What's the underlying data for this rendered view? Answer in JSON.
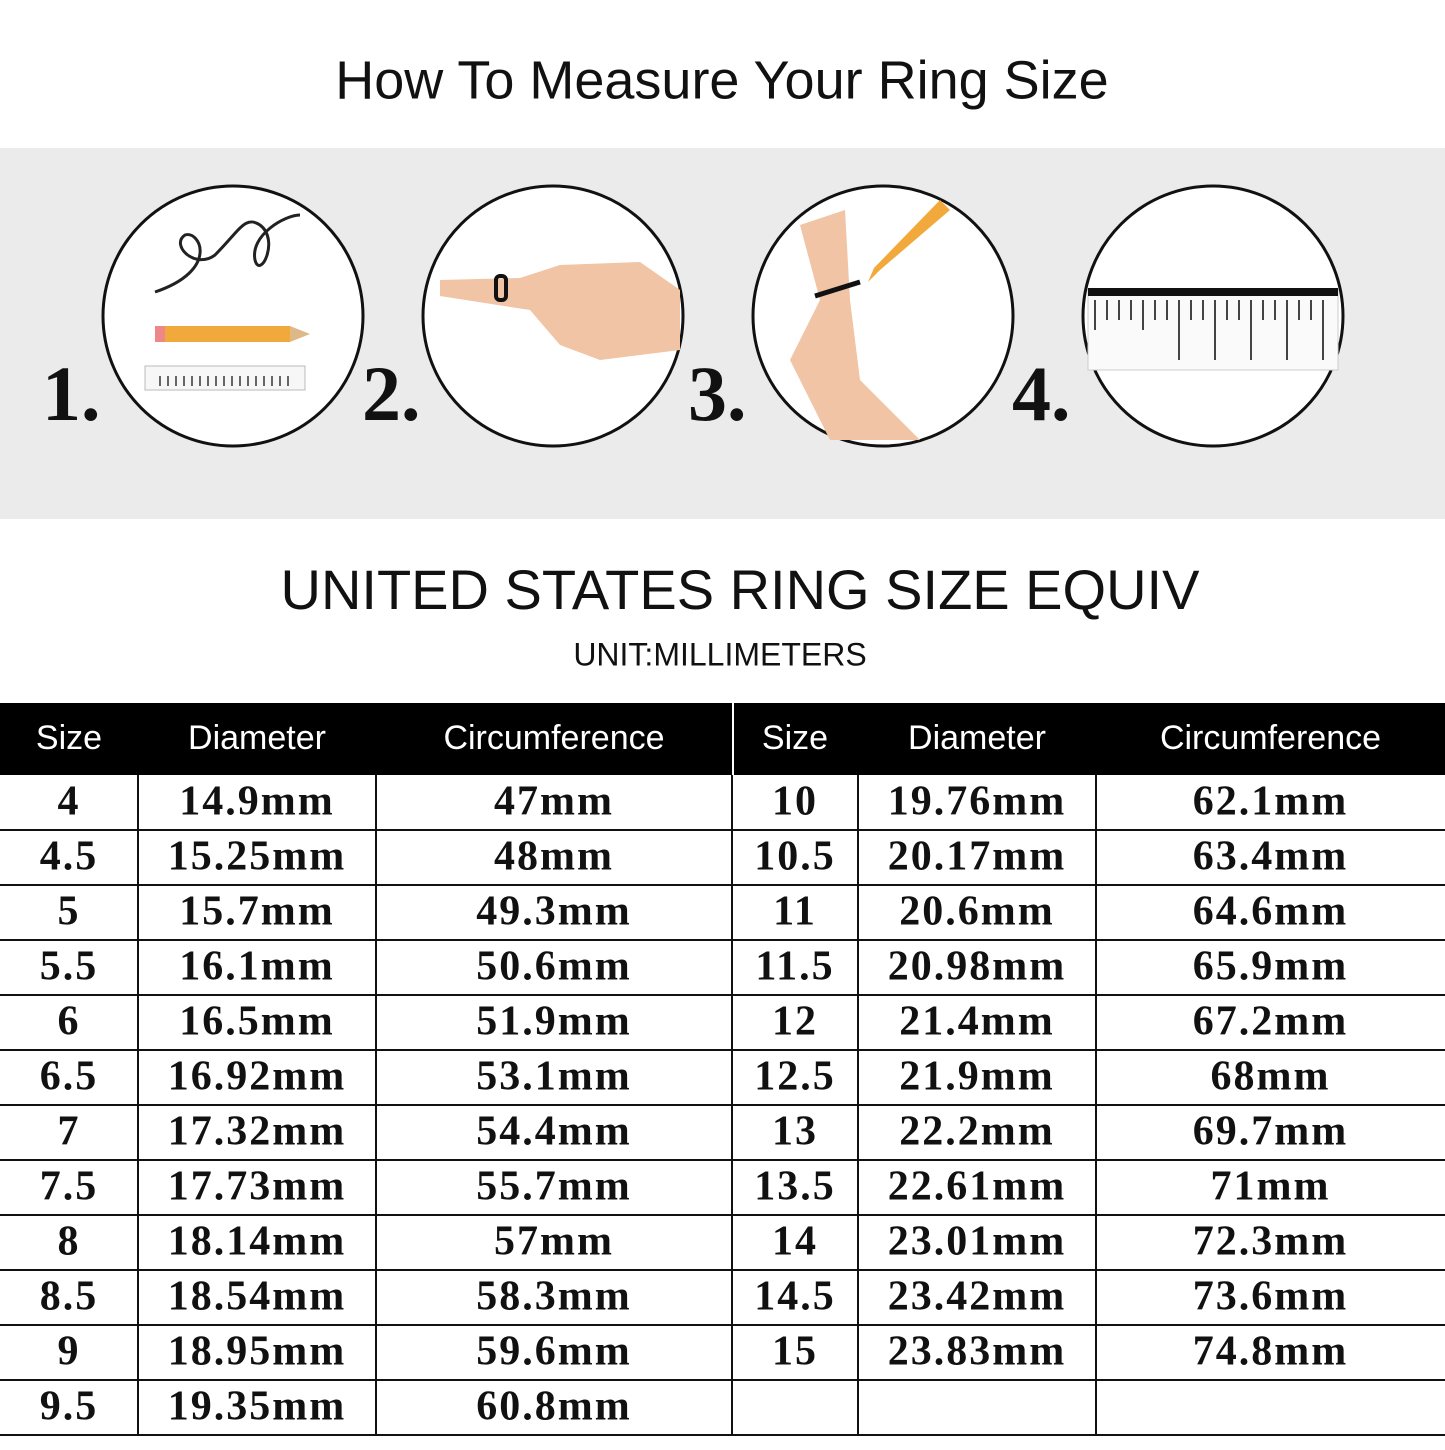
{
  "header": {
    "title": "How To Measure Your Ring Size"
  },
  "steps": [
    "1.",
    "2.",
    "3.",
    "4."
  ],
  "table": {
    "title": "UNITED STATES RING SIZE EQUIV",
    "unit": "UNIT:MILLIMETERS",
    "left": {
      "header": [
        "Size",
        "Diameter",
        "Circumference"
      ],
      "rows": [
        [
          "4",
          "14.9mm",
          "47mm"
        ],
        [
          "4.5",
          "15.25mm",
          "48mm"
        ],
        [
          "5",
          "15.7mm",
          "49.3mm"
        ],
        [
          "5.5",
          "16.1mm",
          "50.6mm"
        ],
        [
          "6",
          "16.5mm",
          "51.9mm"
        ],
        [
          "6.5",
          "16.92mm",
          "53.1mm"
        ],
        [
          "7",
          "17.32mm",
          "54.4mm"
        ],
        [
          "7.5",
          "17.73mm",
          "55.7mm"
        ],
        [
          "8",
          "18.14mm",
          "57mm"
        ],
        [
          "8.5",
          "18.54mm",
          "58.3mm"
        ],
        [
          "9",
          "18.95mm",
          "59.6mm"
        ],
        [
          "9.5",
          "19.35mm",
          "60.8mm"
        ]
      ]
    },
    "right": {
      "header": [
        "Size",
        "Diameter",
        "Circumference"
      ],
      "rows": [
        [
          "10",
          "19.76mm",
          "62.1mm"
        ],
        [
          "10.5",
          "20.17mm",
          "63.4mm"
        ],
        [
          "11",
          "20.6mm",
          "64.6mm"
        ],
        [
          "11.5",
          "20.98mm",
          "65.9mm"
        ],
        [
          "12",
          "21.4mm",
          "67.2mm"
        ],
        [
          "12.5",
          "21.9mm",
          "68mm"
        ],
        [
          "13",
          "22.2mm",
          "69.7mm"
        ],
        [
          "13.5",
          "22.61mm",
          "71mm"
        ],
        [
          "14",
          "23.01mm",
          "72.3mm"
        ],
        [
          "14.5",
          "23.42mm",
          "73.6mm"
        ],
        [
          "15",
          "23.83mm",
          "74.8mm"
        ]
      ]
    }
  }
}
